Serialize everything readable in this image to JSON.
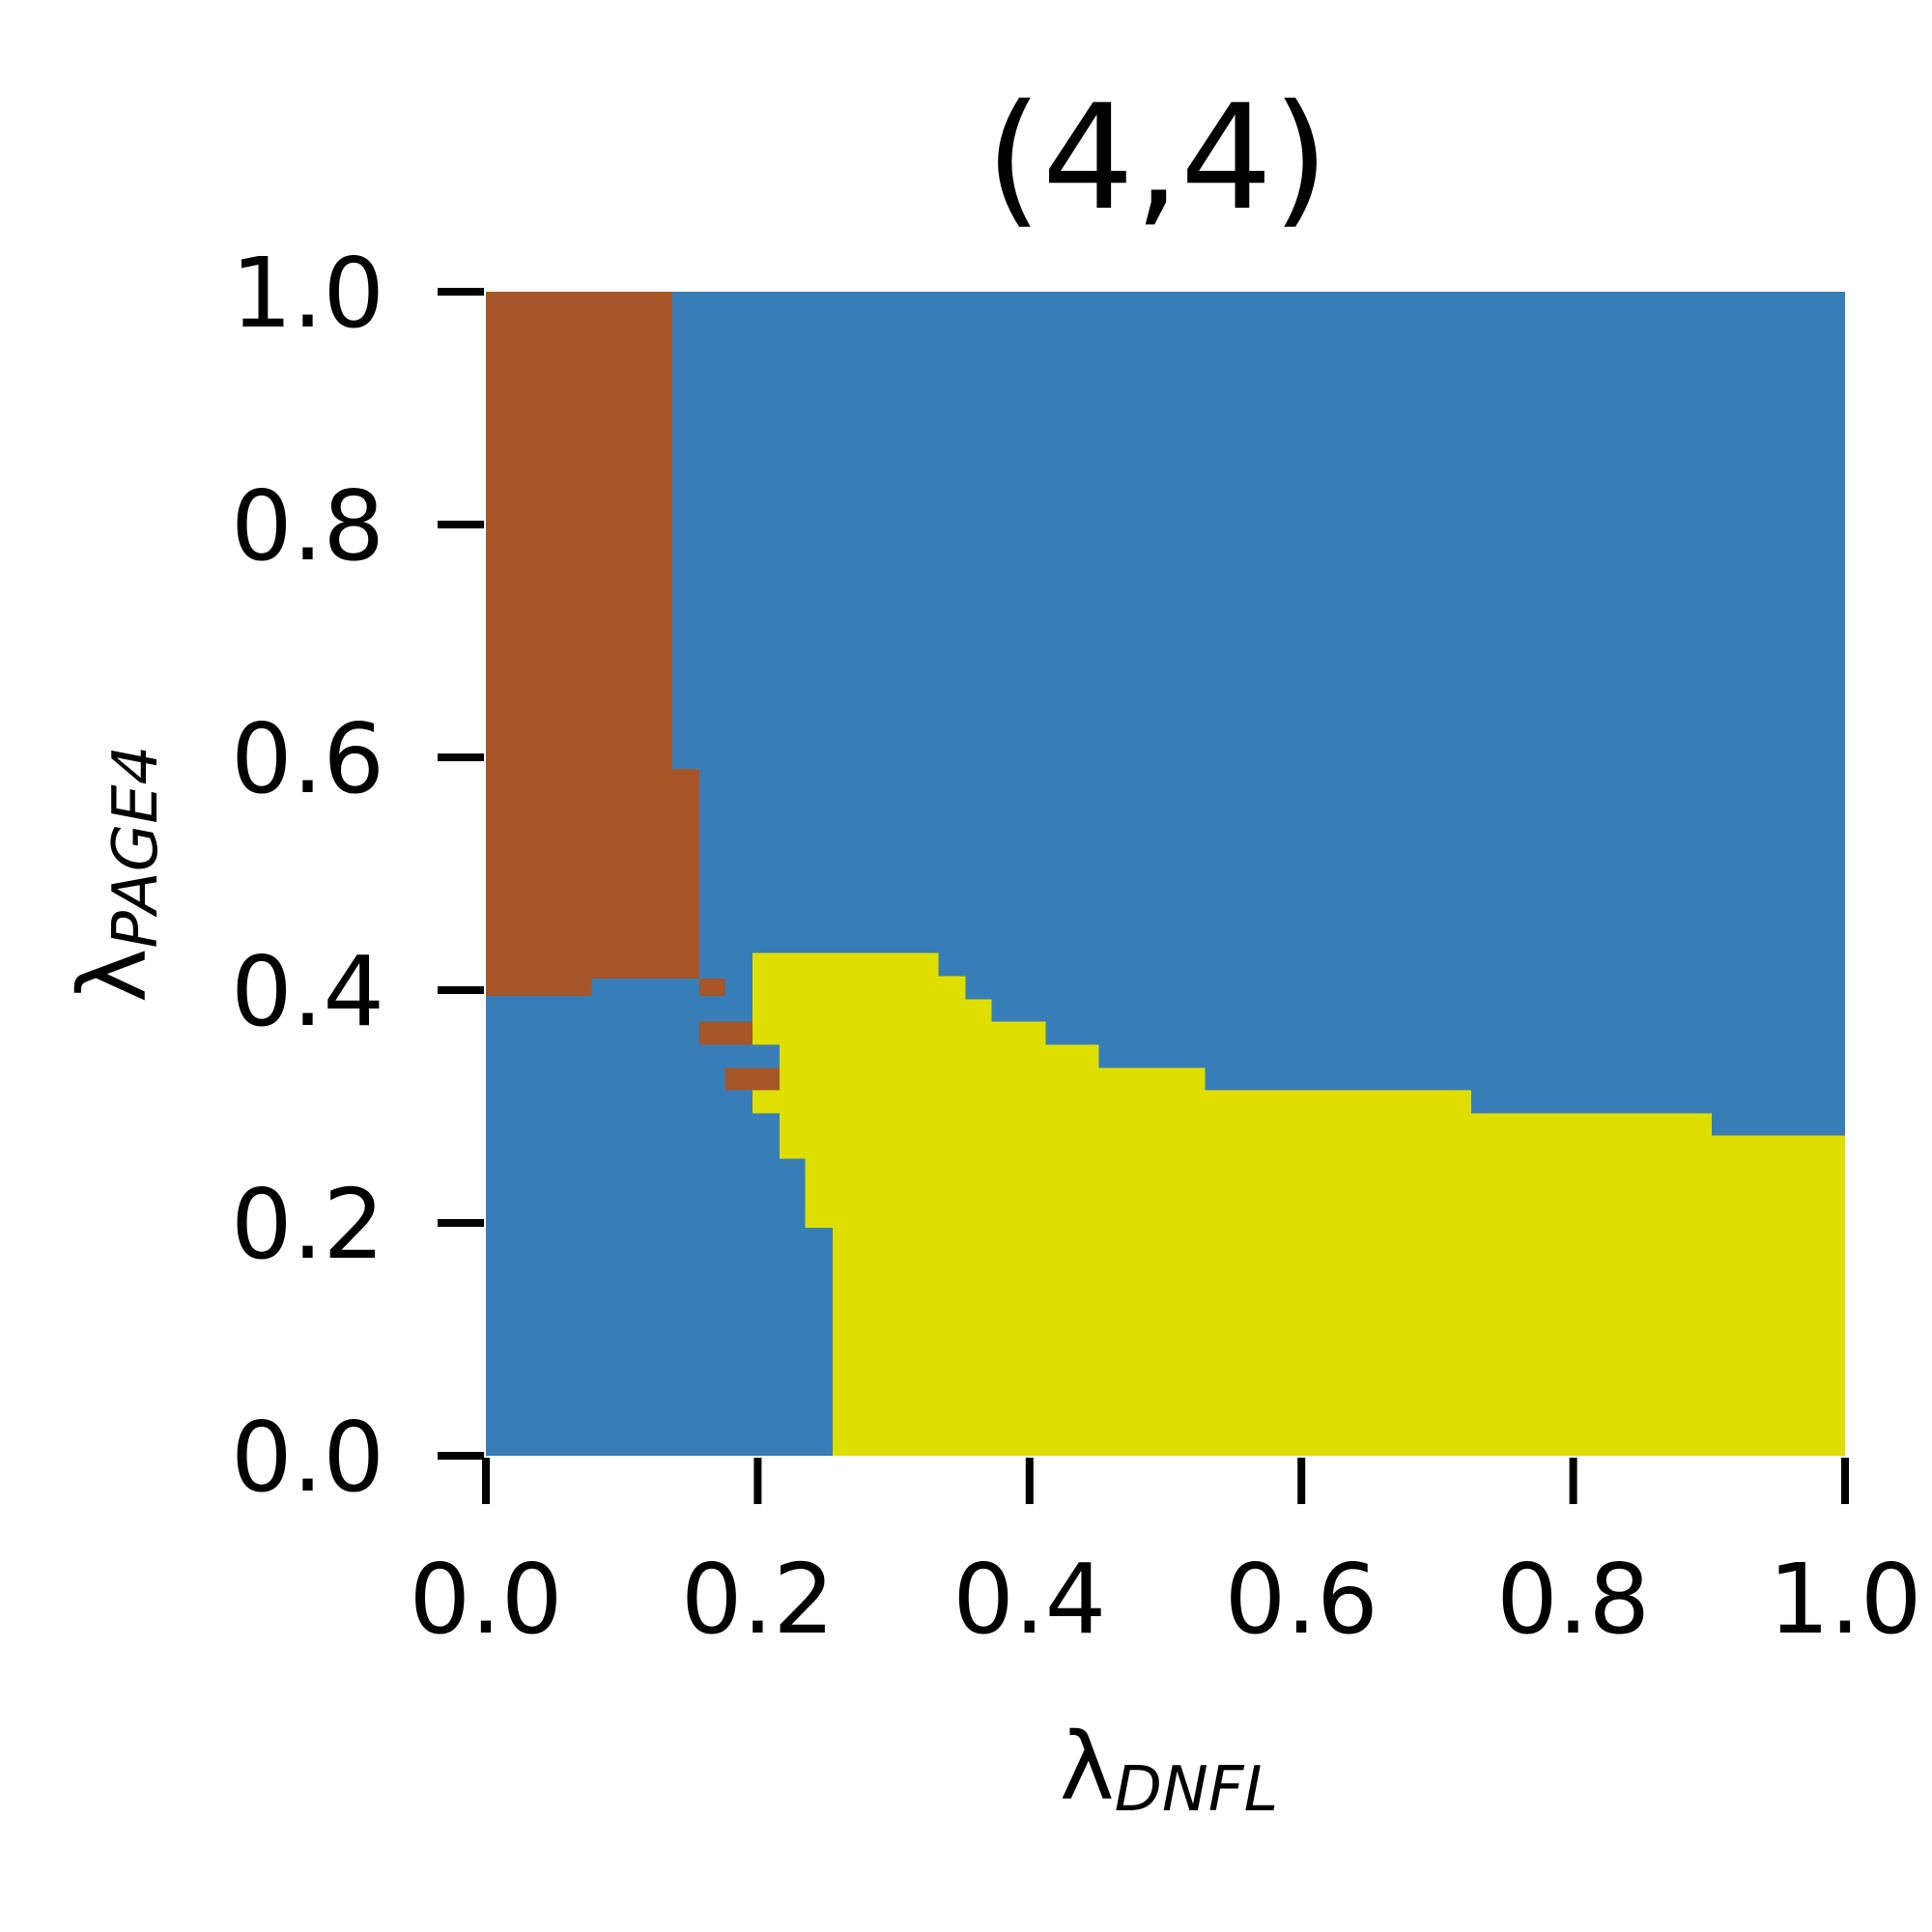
{
  "chart_data": {
    "type": "heatmap",
    "title": "(4,4)",
    "xlabel": {
      "symbol": "λ",
      "subscript": "DNFL"
    },
    "ylabel": {
      "symbol": "λ",
      "subscript": "PAGE4"
    },
    "xlim": [
      0,
      1
    ],
    "ylim": [
      0,
      1
    ],
    "x_ticks": [
      0.0,
      0.2,
      0.4,
      0.6,
      0.8,
      1.0
    ],
    "y_ticks": [
      0.0,
      0.2,
      0.4,
      0.6,
      0.8,
      1.0
    ],
    "x_tick_labels": [
      "0.0",
      "0.2",
      "0.4",
      "0.6",
      "0.8",
      "1.0"
    ],
    "y_tick_labels": [
      "0.0",
      "0.2",
      "0.4",
      "0.6",
      "0.8",
      "1.0"
    ],
    "grid": false,
    "background_state": "blue",
    "colors": {
      "blue": "#377eb8",
      "brown": "#a65628",
      "yellow": "#dede00"
    },
    "regions": [
      {
        "state": "brown",
        "x": [
          0.0,
          0.137
        ],
        "y": [
          0.59,
          1.0
        ]
      },
      {
        "state": "brown",
        "x": [
          0.0,
          0.157
        ],
        "y": [
          0.41,
          0.59
        ]
      },
      {
        "state": "brown",
        "x": [
          0.0,
          0.078
        ],
        "y": [
          0.395,
          0.41
        ]
      },
      {
        "state": "brown",
        "x": [
          0.157,
          0.176
        ],
        "y": [
          0.395,
          0.41
        ]
      },
      {
        "state": "brown",
        "x": [
          0.157,
          0.196
        ],
        "y": [
          0.353,
          0.373
        ]
      },
      {
        "state": "brown",
        "x": [
          0.176,
          0.216
        ],
        "y": [
          0.314,
          0.333
        ]
      },
      {
        "state": "yellow",
        "x": [
          0.196,
          0.333
        ],
        "y": [
          0.412,
          0.432
        ]
      },
      {
        "state": "yellow",
        "x": [
          0.196,
          0.353
        ],
        "y": [
          0.392,
          0.412
        ]
      },
      {
        "state": "yellow",
        "x": [
          0.196,
          0.372
        ],
        "y": [
          0.373,
          0.392
        ]
      },
      {
        "state": "yellow",
        "x": [
          0.196,
          0.412
        ],
        "y": [
          0.353,
          0.373
        ]
      },
      {
        "state": "yellow",
        "x": [
          0.216,
          0.451
        ],
        "y": [
          0.333,
          0.353
        ]
      },
      {
        "state": "yellow",
        "x": [
          0.216,
          0.529
        ],
        "y": [
          0.314,
          0.333
        ]
      },
      {
        "state": "yellow",
        "x": [
          0.196,
          0.725
        ],
        "y": [
          0.294,
          0.314
        ]
      },
      {
        "state": "yellow",
        "x": [
          0.216,
          0.902
        ],
        "y": [
          0.275,
          0.294
        ]
      },
      {
        "state": "yellow",
        "x": [
          0.216,
          1.0
        ],
        "y": [
          0.255,
          0.275
        ]
      },
      {
        "state": "yellow",
        "x": [
          0.235,
          1.0
        ],
        "y": [
          0.196,
          0.255
        ]
      },
      {
        "state": "yellow",
        "x": [
          0.255,
          1.0
        ],
        "y": [
          0.0,
          0.196
        ]
      }
    ]
  }
}
